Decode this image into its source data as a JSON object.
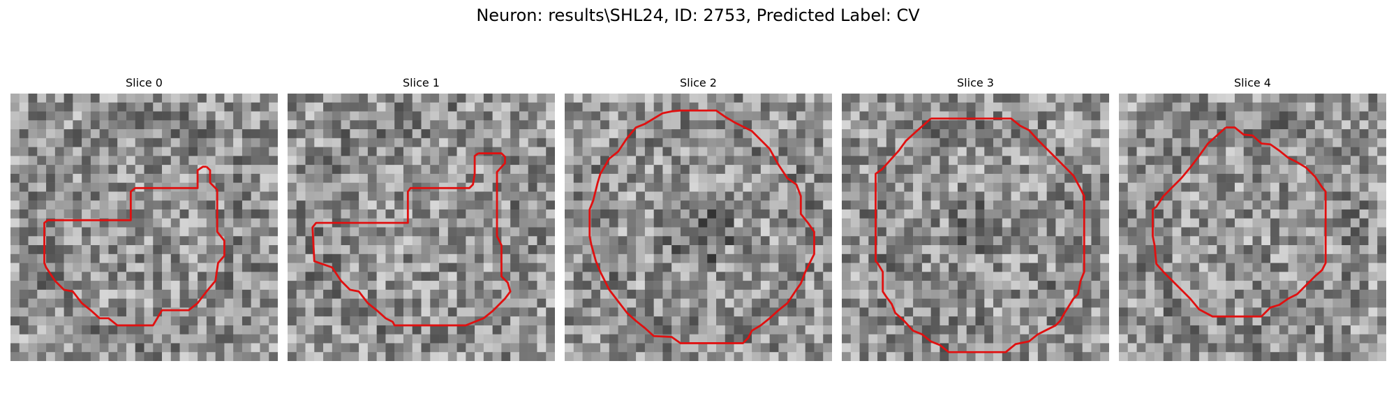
{
  "figure": {
    "title": "Neuron: results\\SHL24, ID: 2753, Predicted Label: CV",
    "contour_color": "#e01010",
    "colormap": "gray",
    "grid_size": 30
  },
  "panels": [
    {
      "label": "Slice 0",
      "contour": [
        [
          22,
          8.2
        ],
        [
          22.4,
          8.6
        ],
        [
          22.4,
          10
        ],
        [
          23.2,
          10.8
        ],
        [
          23.2,
          15.5
        ],
        [
          24,
          16.5
        ],
        [
          24,
          18.2
        ],
        [
          23.3,
          19
        ],
        [
          23,
          21
        ],
        [
          22,
          22.2
        ],
        [
          21,
          23.5
        ],
        [
          20,
          24.3
        ],
        [
          17,
          24.3
        ],
        [
          16,
          26
        ],
        [
          12,
          26
        ],
        [
          11,
          25.2
        ],
        [
          10,
          25.2
        ],
        [
          9,
          24.3
        ],
        [
          8,
          23.5
        ],
        [
          7,
          22.2
        ],
        [
          6,
          22
        ],
        [
          5,
          21
        ],
        [
          4,
          19.5
        ],
        [
          3.8,
          19
        ],
        [
          3.8,
          14.5
        ],
        [
          4.2,
          14.2
        ],
        [
          13.5,
          14.2
        ],
        [
          13.5,
          11
        ],
        [
          14,
          10.6
        ],
        [
          21,
          10.6
        ],
        [
          21,
          8.6
        ],
        [
          21.6,
          8.2
        ],
        [
          22,
          8.2
        ]
      ]
    },
    {
      "label": "Slice 1",
      "contour": [
        [
          21.4,
          6.7
        ],
        [
          24,
          6.7
        ],
        [
          24.4,
          7.1
        ],
        [
          24.4,
          7.8
        ],
        [
          23.5,
          8.8
        ],
        [
          23.5,
          16
        ],
        [
          24,
          17
        ],
        [
          24,
          20.5
        ],
        [
          24.7,
          21.2
        ],
        [
          25,
          22.2
        ],
        [
          24.4,
          23
        ],
        [
          23,
          24.4
        ],
        [
          22,
          25.2
        ],
        [
          20,
          26
        ],
        [
          12,
          26
        ],
        [
          11.8,
          25.6
        ],
        [
          11,
          25.2
        ],
        [
          10,
          24.3
        ],
        [
          9,
          23.5
        ],
        [
          8,
          22.2
        ],
        [
          7,
          22
        ],
        [
          6,
          21
        ],
        [
          5,
          19.5
        ],
        [
          3,
          18.8
        ],
        [
          2.8,
          15
        ],
        [
          3.2,
          14.5
        ],
        [
          13.5,
          14.5
        ],
        [
          13.5,
          11
        ],
        [
          13.8,
          10.6
        ],
        [
          20.4,
          10.6
        ],
        [
          20.8,
          10.2
        ],
        [
          21,
          9
        ],
        [
          21,
          7
        ],
        [
          21.4,
          6.7
        ]
      ]
    },
    {
      "label": "Slice 2",
      "contour": [
        [
          10,
          2.8
        ],
        [
          11,
          2.2
        ],
        [
          12,
          2
        ],
        [
          13,
          1.9
        ],
        [
          17,
          1.9
        ],
        [
          18,
          2.6
        ],
        [
          19,
          3.2
        ],
        [
          21,
          4.2
        ],
        [
          22,
          5.2
        ],
        [
          23,
          6.2
        ],
        [
          24,
          8
        ],
        [
          25,
          9.5
        ],
        [
          26,
          10.2
        ],
        [
          26.5,
          11.5
        ],
        [
          26.5,
          13.5
        ],
        [
          27.3,
          14.5
        ],
        [
          28,
          15.5
        ],
        [
          28,
          18
        ],
        [
          27.5,
          19
        ],
        [
          27,
          20
        ],
        [
          26.5,
          21.3
        ],
        [
          26,
          22
        ],
        [
          25,
          23.5
        ],
        [
          24,
          24.3
        ],
        [
          23,
          25.2
        ],
        [
          22,
          26
        ],
        [
          21,
          26.6
        ],
        [
          20.6,
          27.4
        ],
        [
          20,
          28
        ],
        [
          13,
          28
        ],
        [
          12,
          27.3
        ],
        [
          10,
          27.2
        ],
        [
          9,
          26.3
        ],
        [
          8,
          25.5
        ],
        [
          7,
          24.6
        ],
        [
          6,
          23.3
        ],
        [
          5,
          22
        ],
        [
          4,
          20
        ],
        [
          3.5,
          18.8
        ],
        [
          3,
          17
        ],
        [
          2.8,
          16
        ],
        [
          2.8,
          13
        ],
        [
          3.2,
          12
        ],
        [
          3.7,
          10
        ],
        [
          4,
          9
        ],
        [
          5,
          7.3
        ],
        [
          6,
          6.5
        ],
        [
          7,
          5
        ],
        [
          8,
          3.8
        ],
        [
          9,
          3.4
        ],
        [
          10,
          2.8
        ]
      ]
    },
    {
      "label": "Slice 3",
      "contour": [
        [
          10,
          2.8
        ],
        [
          19,
          2.8
        ],
        [
          20,
          3.6
        ],
        [
          21,
          4.1
        ],
        [
          22,
          5.2
        ],
        [
          23,
          6.2
        ],
        [
          24,
          7.2
        ],
        [
          25,
          8.2
        ],
        [
          26,
          9.2
        ],
        [
          26.7,
          10.5
        ],
        [
          27.2,
          11.5
        ],
        [
          27.2,
          20
        ],
        [
          26.8,
          21
        ],
        [
          26.5,
          22.5
        ],
        [
          26,
          23
        ],
        [
          25.5,
          23.8
        ],
        [
          25,
          24.6
        ],
        [
          24.5,
          25.5
        ],
        [
          24,
          26
        ],
        [
          23,
          26.5
        ],
        [
          22,
          27
        ],
        [
          21,
          27.8
        ],
        [
          19.5,
          28.1
        ],
        [
          18.4,
          29
        ],
        [
          12,
          29
        ],
        [
          11,
          28.2
        ],
        [
          10,
          27.8
        ],
        [
          9,
          27
        ],
        [
          8,
          26.6
        ],
        [
          7,
          25.5
        ],
        [
          6,
          24.6
        ],
        [
          5.6,
          23.6
        ],
        [
          5,
          22.8
        ],
        [
          4.6,
          22.2
        ],
        [
          4.6,
          20
        ],
        [
          4,
          19
        ],
        [
          3.8,
          18.8
        ],
        [
          3.8,
          9
        ],
        [
          4.5,
          8.5
        ],
        [
          5.5,
          7.4
        ],
        [
          6.4,
          6.4
        ],
        [
          7.2,
          5.3
        ],
        [
          8.3,
          4.3
        ],
        [
          9.1,
          3.6
        ],
        [
          10,
          2.8
        ]
      ]
    },
    {
      "label": "Slice 4",
      "contour": [
        [
          12,
          3.8
        ],
        [
          13,
          3.8
        ],
        [
          14,
          4.6
        ],
        [
          15,
          4.7
        ],
        [
          16,
          5.6
        ],
        [
          17,
          5.7
        ],
        [
          18,
          6.4
        ],
        [
          19,
          7.2
        ],
        [
          20,
          7.7
        ],
        [
          21,
          8.3
        ],
        [
          22,
          9.3
        ],
        [
          22.8,
          10.5
        ],
        [
          23.2,
          11
        ],
        [
          23.2,
          19
        ],
        [
          22.8,
          19.8
        ],
        [
          22,
          20.5
        ],
        [
          21,
          21.5
        ],
        [
          20,
          22.5
        ],
        [
          19,
          23
        ],
        [
          18,
          23.7
        ],
        [
          17,
          24
        ],
        [
          16,
          25
        ],
        [
          10.5,
          25
        ],
        [
          9,
          24.2
        ],
        [
          8,
          23
        ],
        [
          7,
          22
        ],
        [
          6,
          21
        ],
        [
          5,
          20
        ],
        [
          4.2,
          19.1
        ],
        [
          4,
          17
        ],
        [
          3.8,
          16
        ],
        [
          3.8,
          13
        ],
        [
          4.2,
          12.7
        ],
        [
          5,
          11.5
        ],
        [
          6,
          10.5
        ],
        [
          7,
          9.5
        ],
        [
          8,
          8.3
        ],
        [
          9,
          7
        ],
        [
          10,
          5.6
        ],
        [
          11,
          4.7
        ],
        [
          12,
          3.8
        ]
      ]
    }
  ]
}
